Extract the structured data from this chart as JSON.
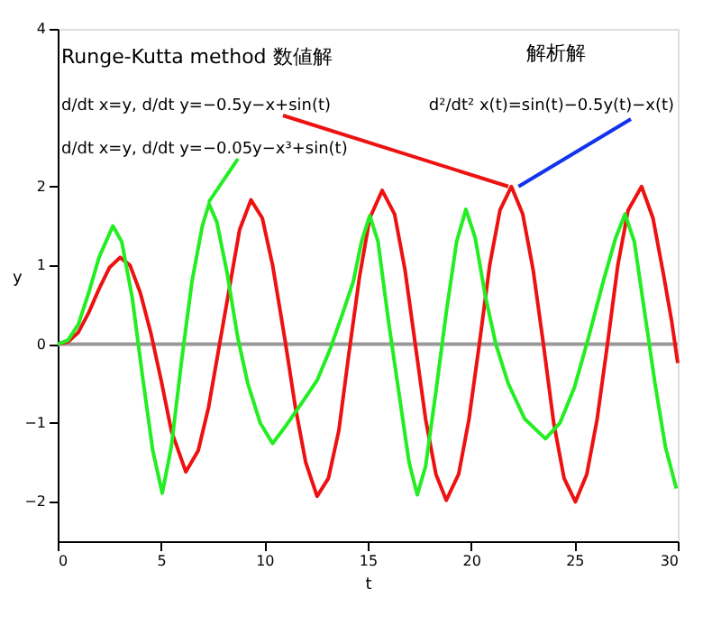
{
  "chart_data": {
    "type": "line",
    "xlabel": "t",
    "ylabel": "y",
    "xlim": [
      0,
      30
    ],
    "ylim": [
      -2.5,
      4
    ],
    "xticks": [
      0,
      5,
      10,
      15,
      20,
      25,
      30
    ],
    "yticks": [
      -2,
      -1,
      0,
      1,
      2,
      4
    ],
    "grid": false,
    "marker": "none",
    "line_style": "solid",
    "ref_lines": [
      {
        "axis": "y",
        "value": 0,
        "color": "#999999"
      }
    ],
    "annotations": [
      "Runge-Kutta method 数値解",
      "解析解",
      {
        "text": "d/dt x=y, d/dt y=−0.5y−x+sin(t)",
        "x": 21.8,
        "y": 2.0
      },
      {
        "text": "d²/dt² x(t)=sin(t)−0.5y(t)−x(t)",
        "x": 22.3,
        "y": 2.0
      },
      {
        "text": "d/dt x=y, d/dt y=−0.05y−x³+sin(t)",
        "x": 7.3,
        "y": 1.8
      }
    ],
    "series": [
      {
        "color": "#ee1111",
        "x": [
          0,
          0.5,
          1,
          1.5,
          2,
          2.5,
          3.02,
          3.5,
          4,
          4.5,
          5,
          5.5,
          6.2,
          6.8,
          7.3,
          7.8,
          8.3,
          8.8,
          9.35,
          9.9,
          10.4,
          11,
          11.5,
          12,
          12.55,
          13.1,
          13.6,
          14.1,
          14.6,
          15.1,
          15.7,
          16.3,
          16.8,
          17.3,
          17.8,
          18.3,
          18.8,
          19.4,
          19.9,
          20.4,
          20.9,
          21.4,
          21.95,
          22.5,
          23,
          23.5,
          24,
          24.5,
          25.05,
          25.6,
          26.1,
          26.6,
          27.1,
          27.6,
          28.25,
          28.8,
          29.3,
          29.7,
          30
        ],
        "values": [
          0,
          0.03,
          0.15,
          0.4,
          0.7,
          0.97,
          1.1,
          1.0,
          0.65,
          0.15,
          -0.45,
          -1.1,
          -1.62,
          -1.35,
          -0.8,
          -0.05,
          0.7,
          1.45,
          1.83,
          1.6,
          1.0,
          0.05,
          -0.8,
          -1.5,
          -1.93,
          -1.7,
          -1.1,
          -0.1,
          0.85,
          1.6,
          1.95,
          1.65,
          0.95,
          0.0,
          -0.95,
          -1.65,
          -1.98,
          -1.65,
          -0.95,
          0.0,
          1.0,
          1.7,
          2.0,
          1.65,
          0.95,
          0.0,
          -1.0,
          -1.7,
          -2.0,
          -1.65,
          -0.95,
          0.0,
          1.0,
          1.7,
          2.0,
          1.6,
          0.9,
          0.3,
          -0.24
        ]
      },
      {
        "color": "#22ee22",
        "x": [
          0,
          0.5,
          1,
          1.5,
          2,
          2.67,
          3.1,
          3.6,
          4.1,
          4.6,
          5.06,
          5.5,
          6,
          6.5,
          7,
          7.32,
          7.7,
          8.2,
          8.7,
          9.2,
          9.8,
          10.4,
          11,
          11.8,
          12.55,
          13.2,
          13.8,
          14.3,
          14.7,
          15.1,
          15.5,
          16,
          16.5,
          17,
          17.4,
          17.8,
          18.3,
          18.8,
          19.3,
          19.75,
          20.2,
          20.7,
          21.2,
          21.8,
          22.6,
          23.6,
          24.3,
          25,
          25.7,
          26.4,
          27,
          27.45,
          27.9,
          28.4,
          28.9,
          29.4,
          29.93
        ],
        "values": [
          0,
          0.05,
          0.25,
          0.65,
          1.1,
          1.5,
          1.3,
          0.6,
          -0.4,
          -1.35,
          -1.89,
          -1.3,
          -0.2,
          0.8,
          1.5,
          1.78,
          1.55,
          0.9,
          0.1,
          -0.5,
          -1.0,
          -1.26,
          -1.05,
          -0.75,
          -0.46,
          -0.05,
          0.4,
          0.79,
          1.3,
          1.63,
          1.3,
          0.3,
          -0.6,
          -1.5,
          -1.91,
          -1.55,
          -0.6,
          0.4,
          1.3,
          1.71,
          1.35,
          0.6,
          0.0,
          -0.5,
          -0.95,
          -1.2,
          -1.0,
          -0.55,
          0.1,
          0.8,
          1.35,
          1.65,
          1.3,
          0.4,
          -0.5,
          -1.3,
          -1.83
        ]
      }
    ]
  }
}
